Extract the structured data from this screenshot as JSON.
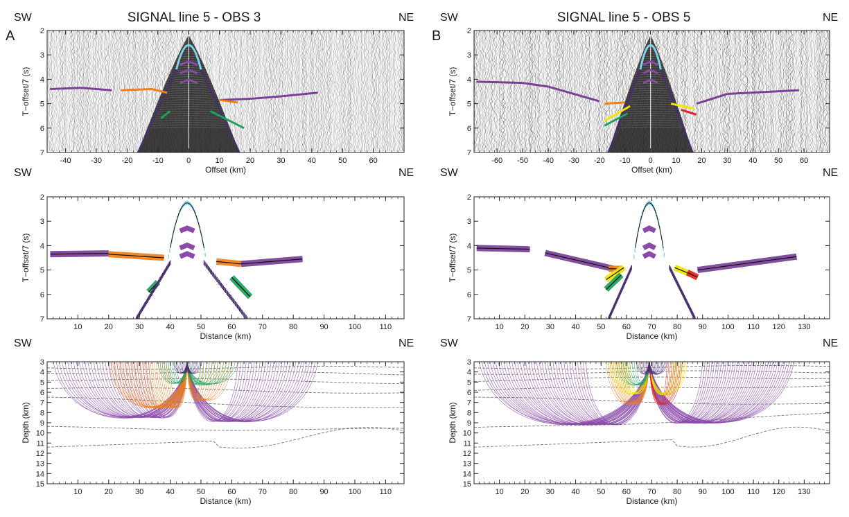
{
  "colors": {
    "water_wave": "#7fd3e8",
    "direct_wave": "#4a2d6e",
    "reflections": "#8a4aa8",
    "sediment": "#7a3f98",
    "upper_crust_orange": "#f07f1a",
    "lower_crust_green": "#1fa15c",
    "yellow_phase": "#f3e600",
    "red_phase": "#e32222",
    "calc_black": "#111111",
    "boundary_dash": "#777777"
  },
  "columns": [
    {
      "letter": "A",
      "title": "SIGNAL line 5 - OBS 3",
      "sw": "SW",
      "ne": "NE",
      "obs_km": 45.5,
      "section": {
        "ylabel": "T−offset/7 (s)",
        "xlabel": "Offset (km)",
        "xlim": [
          -46,
          70
        ],
        "xticks": [
          -40,
          -30,
          -20,
          -10,
          0,
          10,
          20,
          30,
          40,
          50,
          60
        ],
        "yticks": [
          2,
          3,
          4,
          5,
          6,
          7
        ],
        "ylim": [
          2,
          7
        ]
      },
      "picks": {
        "ylabel": "T−offset/7 (s)",
        "xlabel": "Distance (km)",
        "xlim": [
          0,
          116
        ],
        "xticks": [
          10,
          20,
          30,
          40,
          50,
          60,
          70,
          80,
          90,
          100,
          110
        ],
        "yticks": [
          2,
          3,
          4,
          5,
          6,
          7
        ],
        "ylim": [
          2,
          7
        ],
        "segments": [
          {
            "phase": "sediment",
            "x0": 1,
            "x1": 20,
            "t0": 4.35,
            "t1": 4.32
          },
          {
            "phase": "upper_crust_orange",
            "x0": 20,
            "x1": 38,
            "t0": 4.35,
            "t1": 4.5
          },
          {
            "phase": "upper_crust_orange",
            "x0": 55,
            "x1": 63,
            "t0": 4.65,
            "t1": 4.75
          },
          {
            "phase": "sediment",
            "x0": 63,
            "x1": 83,
            "t0": 4.75,
            "t1": 4.55
          },
          {
            "phase": "lower_crust_green",
            "x0": 60,
            "x1": 66,
            "t0": 5.3,
            "t1": 6.1
          },
          {
            "phase": "lower_crust_green",
            "x0": 33,
            "x1": 36,
            "t0": 5.9,
            "t1": 5.5
          },
          {
            "phase": "direct_wave",
            "x0": 29,
            "x1": 40,
            "t0": 7.0,
            "t1": 4.7
          },
          {
            "phase": "direct_wave",
            "x0": 51,
            "x1": 65,
            "t0": 4.7,
            "t1": 7.0
          }
        ]
      },
      "rays": {
        "ylabel": "Depth (km)",
        "xlabel": "Distance (km)",
        "xlim": [
          0,
          116
        ],
        "xticks": [
          10,
          20,
          30,
          40,
          50,
          60,
          70,
          80,
          90,
          100,
          110
        ],
        "yticks": [
          3,
          4,
          5,
          6,
          7,
          8,
          9,
          10,
          11,
          12,
          13,
          14,
          15
        ],
        "ylim": [
          3,
          15
        ]
      }
    },
    {
      "letter": "B",
      "title": "SIGNAL line 5 - OBS 5",
      "sw": "SW",
      "ne": "NE",
      "obs_km": 69,
      "section": {
        "ylabel": "T−offset/7 (s)",
        "xlabel": "Offset (km)",
        "xlim": [
          -69,
          70
        ],
        "xticks": [
          -60,
          -50,
          -40,
          -30,
          -20,
          -10,
          0,
          10,
          20,
          30,
          40,
          50,
          60
        ],
        "yticks": [
          2,
          3,
          4,
          5,
          6,
          7
        ],
        "ylim": [
          2,
          7
        ]
      },
      "picks": {
        "ylabel": "T−offset/7 (s)",
        "xlabel": "Distance (km)",
        "xlim": [
          0,
          140
        ],
        "xticks": [
          10,
          20,
          30,
          40,
          50,
          60,
          70,
          80,
          90,
          100,
          110,
          120,
          130
        ],
        "yticks": [
          2,
          3,
          4,
          5,
          6,
          7
        ],
        "ylim": [
          2,
          7
        ],
        "segments": [
          {
            "phase": "sediment",
            "x0": 1,
            "x1": 22,
            "t0": 4.1,
            "t1": 4.15
          },
          {
            "phase": "sediment",
            "x0": 28,
            "x1": 55,
            "t0": 4.3,
            "t1": 4.95
          },
          {
            "phase": "upper_crust_orange",
            "x0": 53,
            "x1": 58,
            "t0": 4.95,
            "t1": 4.95
          },
          {
            "phase": "yellow_phase",
            "x0": 52,
            "x1": 59,
            "t0": 5.4,
            "t1": 4.9
          },
          {
            "phase": "lower_crust_green",
            "x0": 52,
            "x1": 58,
            "t0": 5.8,
            "t1": 5.2
          },
          {
            "phase": "yellow_phase",
            "x0": 79,
            "x1": 86,
            "t0": 4.9,
            "t1": 5.2
          },
          {
            "phase": "red_phase",
            "x0": 84,
            "x1": 88,
            "t0": 5.1,
            "t1": 5.3
          },
          {
            "phase": "sediment",
            "x0": 88,
            "x1": 127,
            "t0": 5.0,
            "t1": 4.45
          },
          {
            "phase": "direct_wave",
            "x0": 53,
            "x1": 62,
            "t0": 7.0,
            "t1": 4.9
          },
          {
            "phase": "direct_wave",
            "x0": 77,
            "x1": 87,
            "t0": 4.9,
            "t1": 7.0
          }
        ]
      },
      "rays": {
        "ylabel": "Depth (km)",
        "xlabel": "Distance (km)",
        "xlim": [
          0,
          140
        ],
        "xticks": [
          10,
          20,
          30,
          40,
          50,
          60,
          70,
          80,
          90,
          100,
          110,
          120,
          130
        ],
        "yticks": [
          3,
          4,
          5,
          6,
          7,
          8,
          9,
          10,
          11,
          12,
          13,
          14,
          15
        ],
        "ylim": [
          3,
          15
        ]
      }
    }
  ],
  "chart_data": [
    {
      "type": "scatter",
      "panel": "A-top",
      "title": "SIGNAL line 5 - OBS 3",
      "xlabel": "Offset (km)",
      "ylabel": "T−offset/7 (s)",
      "xlim": [
        -46,
        70
      ],
      "ylim": [
        2,
        7
      ],
      "series": [
        {
          "phase": "direct_wave",
          "x": [
            -16,
            -10,
            -5,
            0,
            5,
            10,
            16
          ],
          "y": [
            7.0,
            5.6,
            3.9,
            2.2,
            3.9,
            5.6,
            7.0
          ]
        },
        {
          "phase": "sediment",
          "x": [
            -45,
            -35,
            -25,
            10,
            20,
            30,
            42
          ],
          "y": [
            4.4,
            4.35,
            4.45,
            4.85,
            4.8,
            4.7,
            4.55
          ]
        }
      ]
    },
    {
      "type": "scatter",
      "panel": "B-top",
      "title": "SIGNAL line 5 - OBS 5",
      "xlabel": "Offset (km)",
      "ylabel": "T−offset/7 (s)",
      "xlim": [
        -69,
        70
      ],
      "ylim": [
        2,
        7
      ],
      "series": [
        {
          "phase": "direct_wave",
          "x": [
            -16,
            -10,
            -5,
            0,
            5,
            10,
            16
          ],
          "y": [
            7.0,
            5.6,
            3.9,
            2.2,
            3.9,
            5.6,
            7.0
          ]
        },
        {
          "phase": "sediment",
          "x": [
            -68,
            -50,
            -40,
            -20,
            18,
            30,
            58
          ],
          "y": [
            4.1,
            4.15,
            4.3,
            4.9,
            5.0,
            4.6,
            4.45
          ]
        }
      ]
    },
    {
      "type": "scatter",
      "panel": "A-middle",
      "xlabel": "Distance (km)",
      "ylabel": "T−offset/7 (s)",
      "xlim": [
        0,
        116
      ],
      "ylim": [
        2,
        7
      ]
    },
    {
      "type": "scatter",
      "panel": "B-middle",
      "xlabel": "Distance (km)",
      "ylabel": "T−offset/7 (s)",
      "xlim": [
        0,
        140
      ],
      "ylim": [
        2,
        7
      ]
    },
    {
      "type": "line",
      "panel": "A-bottom",
      "xlabel": "Distance (km)",
      "ylabel": "Depth (km)",
      "xlim": [
        0,
        116
      ],
      "ylim": [
        3,
        15
      ]
    },
    {
      "type": "line",
      "panel": "B-bottom",
      "xlabel": "Distance (km)",
      "ylabel": "Depth (km)",
      "xlim": [
        0,
        140
      ],
      "ylim": [
        3,
        15
      ]
    }
  ]
}
